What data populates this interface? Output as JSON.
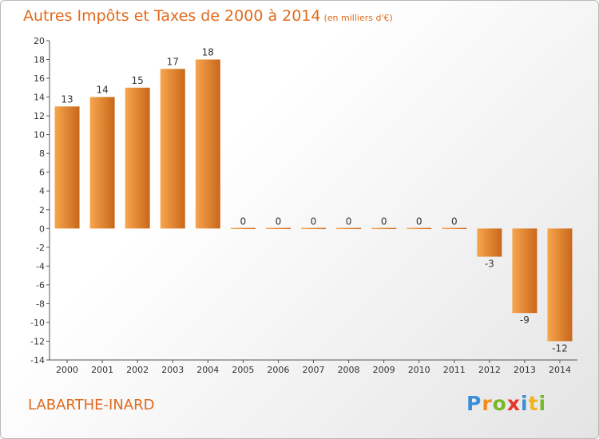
{
  "title": "Autres Impôts et Taxes de 2000 à 2014",
  "subtitle": "(en milliers d'€)",
  "commune": "LABARTHE-INARD",
  "brand": {
    "letters": [
      {
        "ch": "P",
        "color": "#3a8fd6"
      },
      {
        "ch": "r",
        "color": "#f28c1e"
      },
      {
        "ch": "o",
        "color": "#79b928"
      },
      {
        "ch": "x",
        "color": "#e8362c"
      },
      {
        "ch": "i",
        "color": "#3a8fd6"
      },
      {
        "ch": "t",
        "color": "#f2b31e"
      },
      {
        "ch": "i",
        "color": "#79b928"
      }
    ]
  },
  "colors": {
    "bar_light": "#f7a64e",
    "bar_dark": "#c8671a",
    "text_accent": "#e06a1c"
  },
  "chart_data": {
    "type": "bar",
    "categories": [
      "2000",
      "2001",
      "2002",
      "2003",
      "2004",
      "2005",
      "2006",
      "2007",
      "2008",
      "2009",
      "2010",
      "2011",
      "2012",
      "2013",
      "2014"
    ],
    "values": [
      13,
      14,
      15,
      17,
      18,
      0,
      0,
      0,
      0,
      0,
      0,
      0,
      -3,
      -9,
      -12
    ],
    "data_labels": [
      "13",
      "14",
      "15",
      "17",
      "18",
      "0",
      "0",
      "0",
      "0",
      "0",
      "0",
      "0",
      "-3",
      "-9",
      "-12"
    ],
    "ylim": [
      -14,
      20
    ],
    "yticks": [
      20,
      18,
      16,
      14,
      12,
      10,
      8,
      6,
      4,
      2,
      0,
      -2,
      -4,
      -6,
      -8,
      -10,
      -12,
      -14
    ],
    "xlabel": "",
    "ylabel": "",
    "grid": false
  }
}
